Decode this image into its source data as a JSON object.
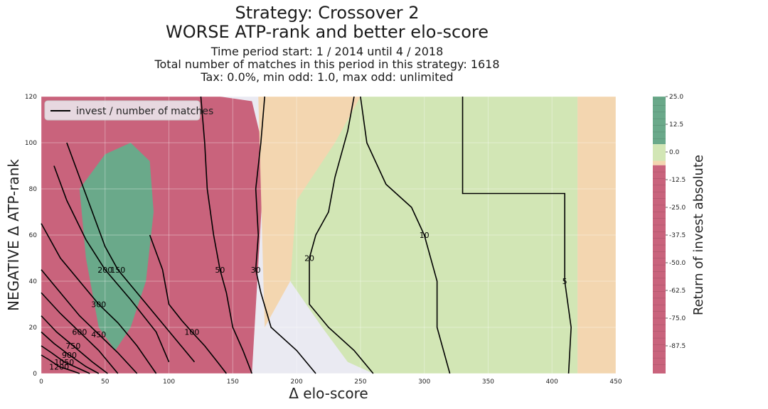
{
  "chart_data": {
    "type": "contour",
    "title": "Strategy: Crossover 2",
    "title_line2": "WORSE ATP-rank and better elo-score",
    "subtitle_lines": [
      "Time period start: 1 / 2014 until 4 / 2018",
      "Total number of matches in this period in this strategy: 1618",
      "Tax: 0.0%, min odd: 1.0, max odd: unlimited"
    ],
    "xlabel": "Δ elo-score",
    "ylabel": "NEGATIVE Δ ATP-rank",
    "xlim": [
      0,
      450
    ],
    "ylim": [
      0,
      120
    ],
    "xticks": [
      0,
      50,
      100,
      150,
      200,
      250,
      300,
      350,
      400,
      450
    ],
    "yticks": [
      0,
      20,
      40,
      60,
      80,
      100,
      120
    ],
    "grid": true,
    "legend": {
      "position": "top-left",
      "entries": [
        "invest / number of matches"
      ]
    },
    "colorbar": {
      "label": "Return of invest absolute",
      "range": [
        -100,
        25
      ],
      "ticks": [
        25.0,
        12.5,
        0.0,
        -12.5,
        -25.0,
        -37.5,
        -50.0,
        -62.5,
        -75.0,
        -87.5
      ],
      "colors": {
        "negative": "#c9637c",
        "near_zero": "#d2e6b5",
        "slightly_negative": "#f3d6b0",
        "positive": "#6aa98a"
      }
    },
    "filled_regions": [
      {
        "x": [
          0,
          45,
          70,
          90,
          105,
          140,
          165,
          175,
          165,
          130,
          95,
          70,
          50,
          30,
          10,
          0
        ],
        "y": [
          120,
          120,
          120,
          120,
          120,
          120,
          118,
          95,
          0,
          0,
          0,
          0,
          0,
          0,
          0,
          0
        ],
        "color": "#c9637c"
      },
      {
        "x": [
          30,
          50,
          70,
          85,
          88,
          82,
          70,
          58,
          45,
          35,
          30
        ],
        "y": [
          80,
          95,
          100,
          92,
          70,
          40,
          20,
          10,
          20,
          50,
          80
        ],
        "color": "#6aa98a"
      },
      {
        "x": [
          170,
          195,
          235,
          250,
          255,
          250,
          225,
          195,
          175,
          170
        ],
        "y": [
          120,
          120,
          120,
          120,
          100,
          80,
          60,
          40,
          20,
          120
        ],
        "color": "#f3d6b0"
      },
      {
        "x": [
          250,
          420,
          420,
          260,
          240,
          220,
          195,
          200,
          230,
          250
        ],
        "y": [
          120,
          120,
          0,
          0,
          5,
          20,
          40,
          75,
          100,
          120
        ],
        "color": "#d2e6b5"
      },
      {
        "x": [
          420,
          450,
          450,
          420
        ],
        "y": [
          120,
          120,
          0,
          0
        ],
        "color": "#f3d6b0"
      }
    ],
    "contour_lines": [
      {
        "level": 5,
        "label": "5",
        "x": [
          330,
          330,
          410,
          410,
          415,
          413
        ],
        "y": [
          120,
          78,
          78,
          40,
          20,
          0
        ]
      },
      {
        "level": 10,
        "label": "10",
        "x": [
          250,
          255,
          270,
          290,
          300,
          310,
          310,
          320
        ],
        "y": [
          120,
          100,
          82,
          72,
          60,
          40,
          20,
          0
        ]
      },
      {
        "level": 20,
        "label": "20",
        "x": [
          245,
          240,
          230,
          225,
          215,
          210,
          210,
          225,
          245,
          260
        ],
        "y": [
          120,
          105,
          85,
          70,
          60,
          50,
          30,
          20,
          10,
          0
        ]
      },
      {
        "level": 30,
        "label": "30",
        "x": [
          175,
          172,
          168,
          170,
          168,
          172,
          180,
          200,
          215
        ],
        "y": [
          120,
          100,
          80,
          60,
          45,
          35,
          20,
          10,
          0
        ]
      },
      {
        "level": 50,
        "label": "50",
        "x": [
          125,
          128,
          130,
          135,
          140,
          145,
          150,
          158,
          165
        ],
        "y": [
          120,
          100,
          80,
          60,
          45,
          35,
          20,
          10,
          0
        ]
      },
      {
        "level": 100,
        "label": "100",
        "x": [
          85,
          95,
          100,
          110,
          118,
          128,
          138,
          145
        ],
        "y": [
          60,
          45,
          30,
          23,
          18,
          12,
          5,
          0
        ]
      },
      {
        "level": 150,
        "label": "150",
        "x": [
          20,
          30,
          40,
          50,
          60,
          75,
          90,
          105,
          120
        ],
        "y": [
          100,
          85,
          70,
          55,
          45,
          35,
          25,
          15,
          5
        ]
      },
      {
        "level": 200,
        "label": "200",
        "x": [
          10,
          20,
          35,
          50,
          70,
          90,
          100
        ],
        "y": [
          90,
          75,
          58,
          45,
          32,
          18,
          5
        ]
      },
      {
        "level": 300,
        "label": "300",
        "x": [
          0,
          15,
          30,
          45,
          60,
          75,
          90
        ],
        "y": [
          65,
          50,
          40,
          30,
          22,
          12,
          0
        ]
      },
      {
        "level": 450,
        "label": "450",
        "x": [
          0,
          15,
          30,
          45,
          60,
          75
        ],
        "y": [
          45,
          35,
          25,
          17,
          9,
          0
        ]
      },
      {
        "level": 600,
        "label": "600",
        "x": [
          0,
          15,
          30,
          45,
          60
        ],
        "y": [
          35,
          26,
          18,
          10,
          0
        ]
      },
      {
        "level": 750,
        "label": "750",
        "x": [
          0,
          12,
          25,
          40,
          52
        ],
        "y": [
          25,
          18,
          12,
          5,
          0
        ]
      },
      {
        "level": 900,
        "label": "900",
        "x": [
          0,
          10,
          22,
          35,
          45
        ],
        "y": [
          18,
          13,
          8,
          3,
          0
        ]
      },
      {
        "level": 1050,
        "label": "1050",
        "x": [
          0,
          8,
          18,
          30,
          38
        ],
        "y": [
          12,
          9,
          5,
          2,
          0
        ]
      },
      {
        "level": 1200,
        "label": "1200",
        "x": [
          0,
          6,
          14,
          25,
          30
        ],
        "y": [
          8,
          6,
          3,
          1,
          0
        ]
      }
    ]
  }
}
